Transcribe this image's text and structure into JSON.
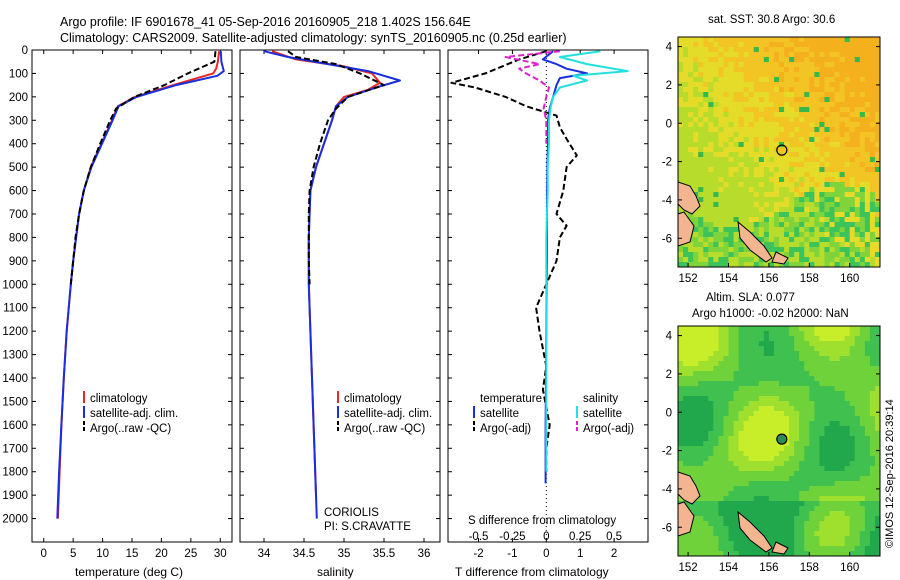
{
  "header": {
    "line1": "Argo profile: IF 6901678_41 05-Sep-2016 20160905_218 1.402S 156.64E",
    "line2": "Climatology: CARS2009. Satellite-adjusted climatology: synTS_20160905.nc (0.25d earlier)"
  },
  "colors": {
    "clim": "#e8281e",
    "sat": "#1a2ee0",
    "argo": "#000000",
    "sat_s": "#22e0e0",
    "argo_s": "#e020c8"
  },
  "chart_data": [
    {
      "type": "line",
      "id": "temperature",
      "xlabel": "temperature (deg C)",
      "ylabel": "",
      "xlim": [
        -2,
        32
      ],
      "ylim": [
        2100,
        0
      ],
      "xticks": [
        0,
        5,
        10,
        15,
        20,
        25,
        30
      ],
      "yticks": [
        0,
        100,
        200,
        300,
        400,
        500,
        600,
        700,
        800,
        900,
        1000,
        1100,
        1200,
        1300,
        1400,
        1500,
        1600,
        1700,
        1800,
        1900,
        2000
      ],
      "legend": [
        "climatology",
        "satellite-adj. clim.",
        "Argo(..raw -QC)"
      ],
      "series": [
        {
          "name": "climatology",
          "depth": [
            5,
            50,
            80,
            100,
            150,
            200,
            240,
            300,
            400,
            500,
            600,
            700,
            800,
            900,
            1000,
            1200,
            1400,
            1600,
            1800,
            2000
          ],
          "values": [
            29.8,
            29.6,
            29.3,
            28.8,
            22,
            15.5,
            12.6,
            11.6,
            9.8,
            8.0,
            6.8,
            6.0,
            5.5,
            5.0,
            4.6,
            3.9,
            3.4,
            3.0,
            2.7,
            2.4
          ]
        },
        {
          "name": "satellite-adj. clim.",
          "depth": [
            5,
            50,
            90,
            110,
            150,
            200,
            240,
            300,
            400,
            500,
            600,
            700,
            800,
            900,
            1000,
            1200,
            1400,
            1600,
            1800,
            2000
          ],
          "values": [
            30.1,
            30.2,
            30.6,
            29.5,
            22.5,
            15.8,
            12.7,
            11.7,
            9.9,
            8.1,
            6.8,
            6.0,
            5.5,
            5.0,
            4.6,
            3.9,
            3.4,
            3.0,
            2.6,
            2.3
          ]
        },
        {
          "name": "Argo(..raw -QC)",
          "depth": [
            5,
            50,
            100,
            150,
            200,
            250,
            300,
            400,
            500,
            600,
            700,
            800,
            900,
            1000
          ],
          "values": [
            29.2,
            29.0,
            24.5,
            20.5,
            15.4,
            12.3,
            11.3,
            9.6,
            8.0,
            6.8,
            6.0,
            5.4,
            5.0,
            4.6
          ]
        }
      ]
    },
    {
      "type": "line",
      "id": "salinity",
      "xlabel": "salinity",
      "xlim": [
        33.7,
        36.2
      ],
      "ylim": [
        2100,
        0
      ],
      "xticks": [
        34,
        34.5,
        35,
        35.5,
        36
      ],
      "yticks": [
        0,
        100,
        200,
        300,
        400,
        500,
        600,
        700,
        800,
        900,
        1000,
        1100,
        1200,
        1300,
        1400,
        1500,
        1600,
        1700,
        1800,
        1900,
        2000
      ],
      "legend": [
        "climatology",
        "satellite-adj. clim.",
        "Argo(..raw -QC)"
      ],
      "annotation": [
        "CORIOLIS",
        "PI: S.CRAVATTE"
      ],
      "series": [
        {
          "name": "climatology",
          "depth": [
            5,
            40,
            70,
            100,
            140,
            170,
            200,
            240,
            300,
            400,
            500,
            600,
            700,
            800,
            1000,
            1200,
            1400,
            1600,
            1800,
            1900
          ],
          "values": [
            34.1,
            34.4,
            35.0,
            35.35,
            35.45,
            35.3,
            35.0,
            34.9,
            34.85,
            34.75,
            34.65,
            34.58,
            34.57,
            34.56,
            34.56,
            34.58,
            34.6,
            34.62,
            34.64,
            34.65
          ]
        },
        {
          "name": "satellite-adj. clim.",
          "depth": [
            5,
            30,
            60,
            90,
            130,
            160,
            200,
            240,
            300,
            400,
            500,
            600,
            700,
            800,
            1000,
            1200,
            1400,
            1600,
            1800,
            2000
          ],
          "values": [
            34.0,
            34.3,
            34.8,
            35.3,
            35.7,
            35.4,
            35.05,
            34.9,
            34.85,
            34.75,
            34.65,
            34.58,
            34.57,
            34.56,
            34.56,
            34.58,
            34.6,
            34.62,
            34.64,
            34.66
          ]
        },
        {
          "name": "Argo(..raw -QC)",
          "depth": [
            5,
            30,
            60,
            100,
            150,
            200,
            250,
            300,
            400,
            500,
            600,
            700,
            800,
            900,
            1000
          ],
          "values": [
            34.3,
            34.4,
            34.9,
            35.2,
            35.5,
            35.05,
            34.9,
            34.8,
            34.7,
            34.62,
            34.57,
            34.56,
            34.56,
            34.56,
            34.57
          ]
        }
      ]
    },
    {
      "type": "line",
      "id": "difference",
      "xlabel": "T difference from climatology",
      "xlabel_top": "S difference from climatology",
      "xlim": [
        -2.9,
        3.0
      ],
      "ylim": [
        2100,
        0
      ],
      "xticks": [
        -2,
        -1,
        0,
        1,
        2
      ],
      "xticks_s": [
        -0.5,
        -0.25,
        0,
        0.25,
        0.5
      ],
      "legend_title_t": "temperature",
      "legend_title_s": "salinity",
      "legend": [
        "satellite",
        "Argo(-adj)",
        "satellite",
        "Argo(-adj)"
      ],
      "series": [
        {
          "name": "T satellite",
          "depth": [
            5,
            40,
            60,
            80,
            100,
            120,
            150,
            200,
            250,
            300,
            400,
            500,
            600,
            700,
            800,
            900,
            1000,
            1200,
            1400,
            1600,
            1800,
            1850
          ],
          "values": [
            0.2,
            -0.1,
            0.3,
            0.6,
            1.2,
            0.4,
            0.3,
            0.2,
            0.1,
            0.05,
            0.05,
            0.03,
            0.02,
            0.02,
            0.02,
            0.02,
            0.01,
            0.0,
            -0.01,
            -0.02,
            -0.02,
            -0.02
          ]
        },
        {
          "name": "T Argo(-adj)",
          "depth": [
            5,
            40,
            70,
            100,
            140,
            160,
            200,
            240,
            280,
            330,
            380,
            450,
            500,
            600,
            700,
            750,
            800,
            900,
            1000,
            1100,
            1200,
            1350,
            1450,
            1600,
            1700,
            1800
          ],
          "values": [
            0.0,
            -0.8,
            -1.3,
            -1.8,
            -2.8,
            -2.1,
            -1.2,
            -0.6,
            0.3,
            0.4,
            0.6,
            0.9,
            0.6,
            0.5,
            0.3,
            0.6,
            0.4,
            0.3,
            0.0,
            -0.3,
            -0.2,
            0.0,
            -0.1,
            0.1,
            0.0,
            0.0
          ]
        },
        {
          "name": "S satellite",
          "depth": [
            5,
            30,
            60,
            90,
            110,
            130,
            160,
            200,
            250,
            300,
            400,
            500,
            600,
            800,
            1000,
            1200,
            1400,
            1600,
            1800
          ],
          "values": [
            0.4,
            0.1,
            0.3,
            0.6,
            0.2,
            0.3,
            0.1,
            0.05,
            0.03,
            0.02,
            0.02,
            0.01,
            0.01,
            0.0,
            0.0,
            0.0,
            0.0,
            0.0,
            0.0
          ]
        },
        {
          "name": "S Argo(-adj)",
          "depth": [
            5,
            30,
            60,
            80,
            100,
            130,
            160,
            200,
            250,
            300,
            400
          ],
          "values": [
            0.1,
            -0.3,
            -0.05,
            -0.2,
            -0.15,
            -0.05,
            0.02,
            0.0,
            -0.02,
            0.0,
            0.0
          ]
        }
      ]
    },
    {
      "type": "heatmap",
      "id": "sst_map",
      "title": "sat. SST: 30.8  Argo: 30.6",
      "xlim": [
        151.5,
        161.5
      ],
      "ylim": [
        -7.5,
        4.5
      ],
      "xticks": [
        152,
        154,
        156,
        158,
        160
      ],
      "yticks": [
        4,
        2,
        0,
        -2,
        -4,
        -6
      ],
      "argo_point": {
        "lon": 156.64,
        "lat": -1.402
      }
    },
    {
      "type": "heatmap",
      "id": "sla_map",
      "title": "Altim. SLA: 0.077",
      "subtitle": "Argo h1000: -0.02 h2000: NaN",
      "xlim": [
        151.5,
        161.5
      ],
      "ylim": [
        -7.5,
        4.5
      ],
      "xticks": [
        152,
        154,
        156,
        158,
        160
      ],
      "yticks": [
        4,
        2,
        0,
        -2,
        -4,
        -6
      ],
      "argo_point": {
        "lon": 156.64,
        "lat": -1.402
      }
    }
  ],
  "credit": "©IMOS 12-Sep-2016 20:39:14"
}
